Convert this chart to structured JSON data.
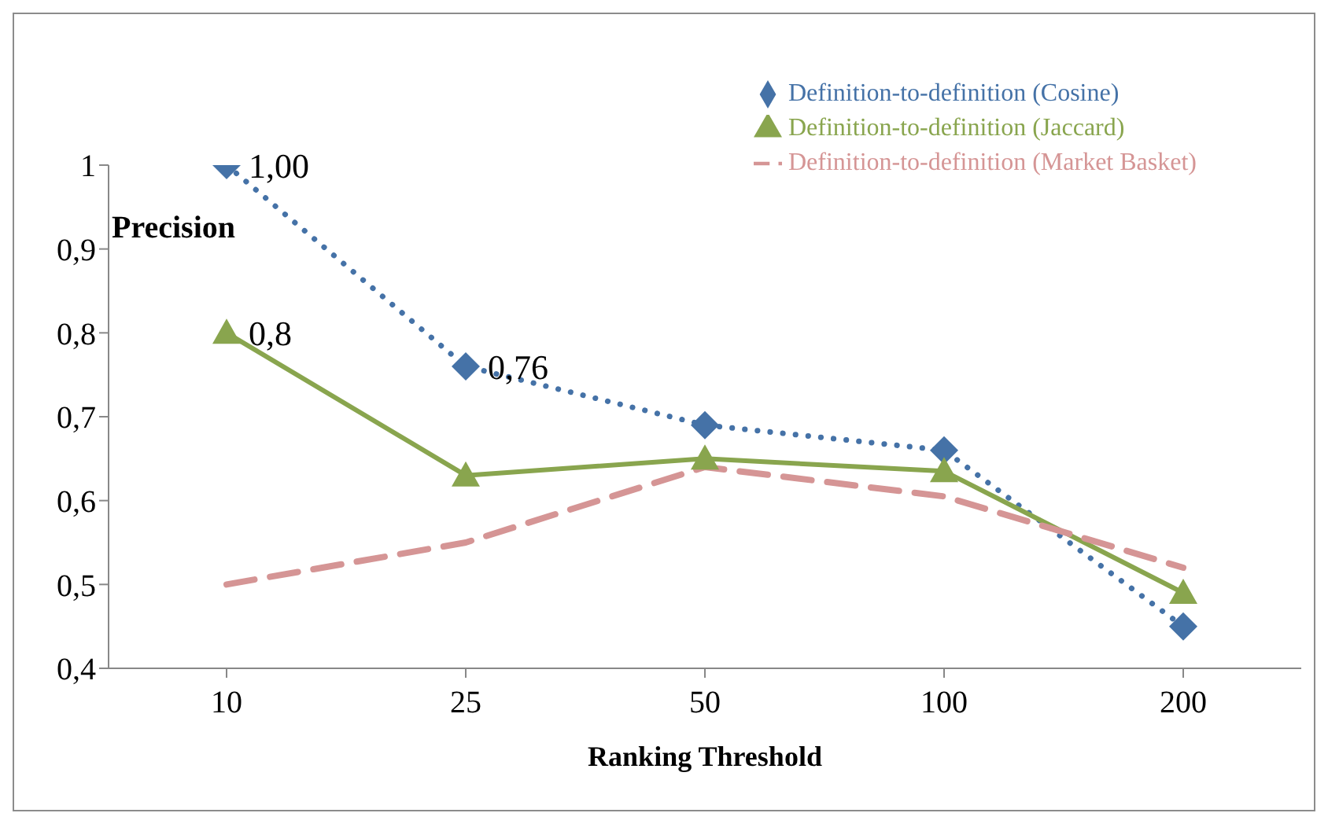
{
  "chart_data": {
    "type": "line",
    "xlabel": "Ranking Threshold",
    "ylabel": "Precision",
    "categories": [
      "10",
      "25",
      "50",
      "100",
      "200"
    ],
    "ylim": [
      0.4,
      1
    ],
    "yticks": [
      {
        "value": 0.4,
        "label": "0,4"
      },
      {
        "value": 0.5,
        "label": "0,5"
      },
      {
        "value": 0.6,
        "label": "0,6"
      },
      {
        "value": 0.7,
        "label": "0,7"
      },
      {
        "value": 0.8,
        "label": "0,8"
      },
      {
        "value": 0.9,
        "label": "0,9"
      },
      {
        "value": 1,
        "label": "1"
      }
    ],
    "grid": false,
    "legend": "top right",
    "series": [
      {
        "name": "Definition-to-definition (Cosine)",
        "color": "#4572a7",
        "values": [
          1,
          0.76,
          0.69,
          0.66,
          0.45
        ],
        "marker": "diamond",
        "line_style": "dotted",
        "value_labels": [
          "1,00",
          "0,76",
          null,
          null,
          null
        ]
      },
      {
        "name": "Definition-to-definition (Jaccard)",
        "color": "#89a54e",
        "values": [
          0.8,
          0.63,
          0.65,
          0.635,
          0.49
        ],
        "marker": "triangle",
        "line_style": "solid",
        "value_labels": [
          "0,8",
          null,
          null,
          null,
          null
        ]
      },
      {
        "name": "Definition-to-definition (Market Basket)",
        "color": "#d59595",
        "values": [
          0.5,
          0.55,
          0.64,
          0.605,
          0.52
        ],
        "marker": "none",
        "line_style": "dashed"
      }
    ]
  }
}
